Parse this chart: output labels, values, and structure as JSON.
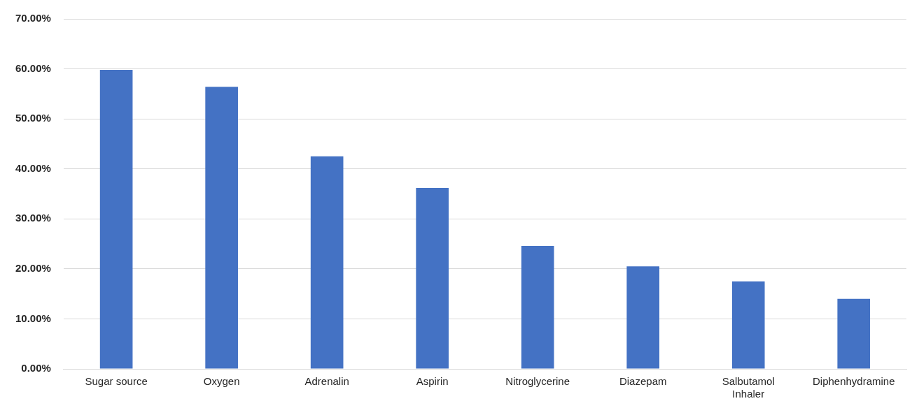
{
  "chart_data": {
    "type": "bar",
    "categories": [
      "Sugar source",
      "Oxygen",
      "Adrenalin",
      "Aspirin",
      "Nitroglycerine",
      "Diazepam",
      "Salbutamol Inhaler",
      "Diphenhydramine"
    ],
    "values": [
      59.8,
      56.4,
      42.5,
      36.2,
      24.6,
      20.5,
      17.5,
      14.0
    ],
    "color": "#4472c4",
    "ylim": [
      0,
      70
    ],
    "yticks": [
      {
        "value": 0,
        "label": "0.00%"
      },
      {
        "value": 10,
        "label": "10.00%"
      },
      {
        "value": 20,
        "label": "20.00%"
      },
      {
        "value": 30,
        "label": "30.00%"
      },
      {
        "value": 40,
        "label": "40.00%"
      },
      {
        "value": 50,
        "label": "50.00%"
      },
      {
        "value": 60,
        "label": "60.00%"
      },
      {
        "value": 70,
        "label": "70.00%"
      }
    ],
    "grid": "y",
    "legend": false
  }
}
